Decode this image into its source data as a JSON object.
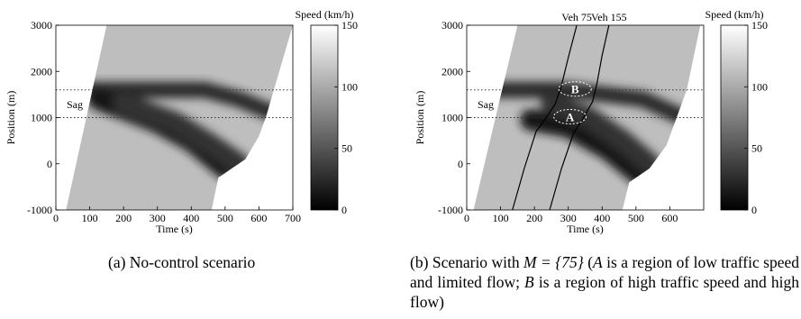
{
  "chart_data": [
    {
      "type": "heatmap",
      "panel": "(a)",
      "title": "",
      "xlabel": "Time (s)",
      "ylabel": "Position (m)",
      "xlim": [
        0,
        700
      ],
      "ylim": [
        -1000,
        3000
      ],
      "xticks": [
        "0",
        "100",
        "200",
        "300",
        "400",
        "500",
        "600",
        "700"
      ],
      "yticks": [
        "-1000",
        "0",
        "1000",
        "2000",
        "3000"
      ],
      "colorbar": {
        "label": "Speed (km/h)",
        "range": [
          0,
          150
        ],
        "ticks": [
          "0",
          "50",
          "100",
          "150"
        ]
      },
      "sag": {
        "label": "Sag",
        "from": 1000,
        "to": 1600
      },
      "entry_boundary": [
        [
          30,
          -1000
        ],
        [
          150,
          3000
        ]
      ],
      "exit_boundary": [
        [
          460,
          -1000
        ],
        [
          480,
          -300
        ],
        [
          560,
          100
        ],
        [
          600,
          600
        ],
        [
          620,
          1000
        ],
        [
          640,
          1500
        ],
        [
          700,
          3000
        ]
      ],
      "congestion_bands": [
        {
          "t": [
            100,
            440,
            540,
            640
          ],
          "y": [
            1600,
            1600,
            1400,
            1100
          ],
          "min_speed": 25
        },
        {
          "t": [
            125,
            300,
            400,
            500
          ],
          "y": [
            1400,
            900,
            500,
            -100
          ],
          "min_speed": 12
        },
        {
          "t": [
            200,
            350,
            460,
            540
          ],
          "y": [
            1300,
            900,
            400,
            0
          ],
          "min_speed": 30
        }
      ]
    },
    {
      "type": "heatmap",
      "panel": "(b)",
      "title": "",
      "xlabel": "Time (s)",
      "ylabel": "Position (m)",
      "xlim": [
        0,
        700
      ],
      "ylim": [
        -1000,
        3000
      ],
      "xticks": [
        "0",
        "100",
        "200",
        "300",
        "400",
        "500",
        "600"
      ],
      "yticks": [
        "-1000",
        "0",
        "1000",
        "2000",
        "3000"
      ],
      "colorbar": {
        "label": "Speed (km/h)",
        "range": [
          0,
          150
        ],
        "ticks": [
          "0",
          "50",
          "100",
          "150"
        ]
      },
      "sag": {
        "label": "Sag",
        "from": 1000,
        "to": 1600
      },
      "entry_boundary": [
        [
          20,
          -1000
        ],
        [
          150,
          3000
        ]
      ],
      "exit_boundary": [
        [
          460,
          -1000
        ],
        [
          480,
          -400
        ],
        [
          540,
          -100
        ],
        [
          590,
          400
        ],
        [
          620,
          1000
        ],
        [
          650,
          1600
        ],
        [
          690,
          3000
        ]
      ],
      "congestion_bands": [
        {
          "t": [
            80,
            300,
            520,
            640
          ],
          "y": [
            1600,
            1600,
            1400,
            1000
          ],
          "min_speed": 25
        },
        {
          "t": [
            190,
            300,
            420,
            520
          ],
          "y": [
            950,
            800,
            300,
            -300
          ],
          "min_speed": 12
        },
        {
          "t": [
            250,
            360,
            460,
            540
          ],
          "y": [
            1300,
            1000,
            500,
            0
          ],
          "min_speed": 30
        }
      ],
      "series": [
        {
          "name": "Veh 75",
          "x": [
            135,
            170,
            205,
            235,
            262,
            280,
            300,
            325
          ],
          "y": [
            -1000,
            -100,
            700,
            1000,
            1300,
            1700,
            2300,
            3000
          ]
        },
        {
          "name": "Veh 155",
          "x": [
            245,
            280,
            315,
            345,
            372,
            385,
            400,
            420
          ],
          "y": [
            -1000,
            -100,
            650,
            1000,
            1350,
            1750,
            2350,
            3000
          ]
        }
      ],
      "annotations": [
        {
          "label": "A",
          "x": 305,
          "y": 1020,
          "description": "low traffic speed and limited flow"
        },
        {
          "label": "B",
          "x": 320,
          "y": 1620,
          "description": "high traffic speed and high flow"
        }
      ]
    }
  ],
  "captions": {
    "a": "(a) No-control scenario",
    "b_prefix": "(b) Scenario with ",
    "b_math": "M = {75}",
    "b_mid1": " (",
    "b_a": "A",
    "b_mid2": " is a region of low traffic speed and limited flow; ",
    "b_b": "B",
    "b_suffix": " is a region of high traffic speed and high flow)"
  }
}
